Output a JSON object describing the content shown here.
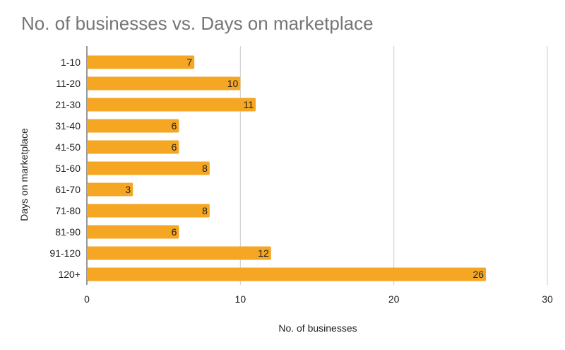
{
  "chart_data": {
    "type": "bar",
    "orientation": "horizontal",
    "title": "No. of businesses vs. Days on marketplace",
    "xlabel": "No. of businesses",
    "ylabel": "Days on marketplace",
    "categories": [
      "1-10",
      "11-20",
      "21-30",
      "31-40",
      "41-50",
      "51-60",
      "61-70",
      "71-80",
      "81-90",
      "91-120",
      "120+"
    ],
    "values": [
      7,
      10,
      11,
      6,
      6,
      8,
      3,
      8,
      6,
      12,
      26
    ],
    "xlim": [
      0,
      30
    ],
    "xticks": [
      0,
      10,
      20,
      30
    ],
    "grid": true,
    "data_labels": true,
    "legend": "none",
    "bar_color": "#F5A623"
  }
}
